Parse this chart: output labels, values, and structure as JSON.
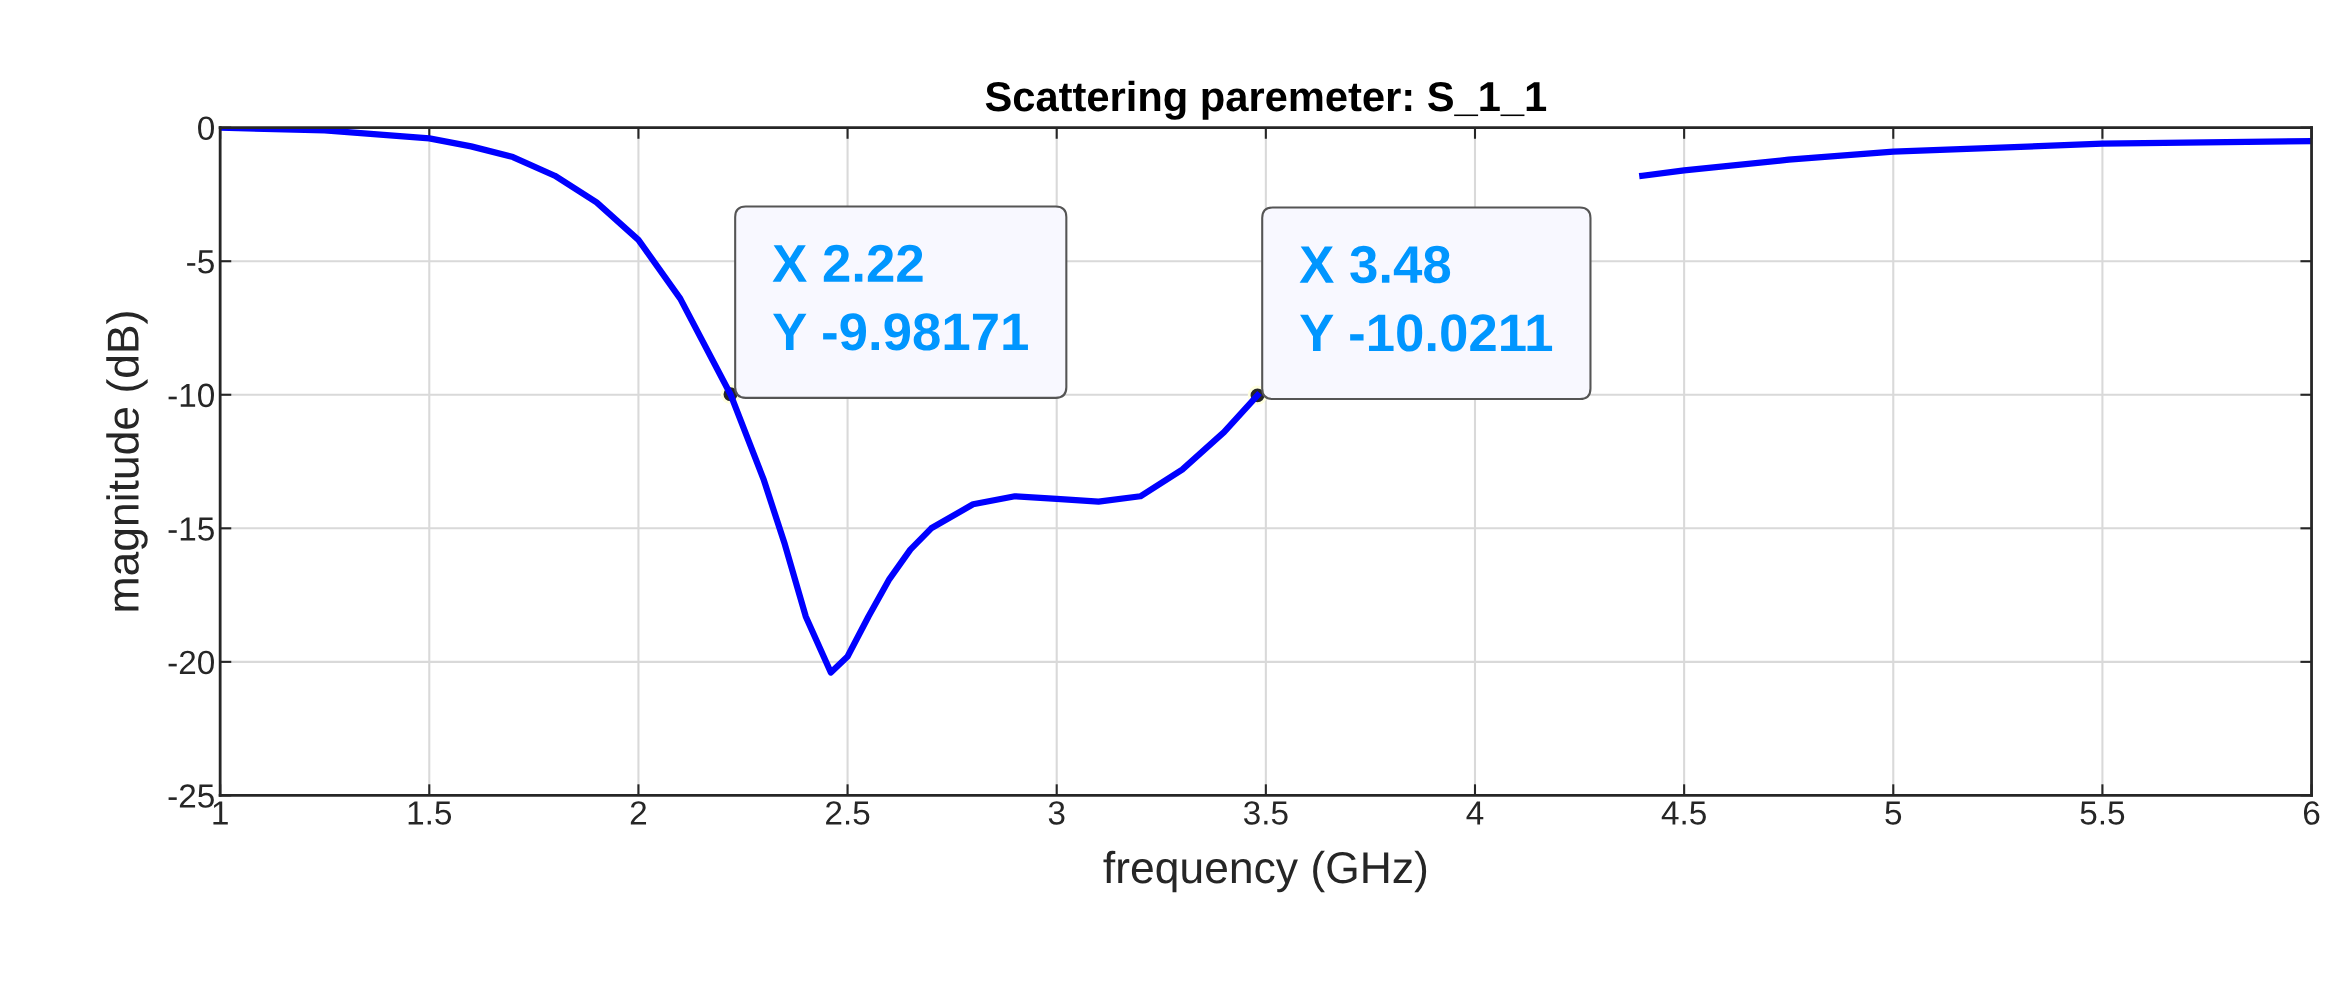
{
  "chart_data": {
    "type": "line",
    "title": "Scattering paremeter: S_1_1",
    "xlabel": "frequency (GHz)",
    "ylabel": "magnitude (dB)",
    "x": [
      1,
      1.25,
      1.5,
      1.6,
      1.7,
      1.8,
      1.9,
      2.0,
      2.1,
      2.22,
      2.3,
      2.35,
      2.4,
      2.46,
      2.5,
      2.55,
      2.6,
      2.65,
      2.7,
      2.8,
      2.9,
      3.0,
      3.1,
      3.2,
      3.3,
      3.4,
      3.48,
      3.6,
      4.4,
      4.5,
      4.75,
      5,
      5.5,
      6
    ],
    "series": [
      {
        "color": "#0000ff",
        "values": [
          0,
          -0.1,
          -0.4,
          -0.7,
          -1.1,
          -1.8,
          -2.8,
          -4.2,
          -6.4,
          -9.98,
          -13.2,
          -15.6,
          -18.3,
          -20.4,
          -19.8,
          -18.3,
          -16.9,
          -15.8,
          -15.0,
          -14.1,
          -13.8,
          -13.9,
          -14.0,
          -13.8,
          -12.8,
          -11.4,
          -10.02,
          null,
          -1.8,
          -1.6,
          -1.2,
          -0.9,
          -0.6,
          -0.5
        ]
      }
    ],
    "xlim": [
      1,
      6
    ],
    "xticks": [
      1,
      1.5,
      2,
      2.5,
      3,
      3.5,
      4,
      4.5,
      5,
      5.5,
      6
    ],
    "ylim": [
      -25,
      0
    ],
    "yticks": [
      -25,
      -20,
      -15,
      -10,
      -5,
      0
    ],
    "grid": true,
    "line_style": "solid",
    "marker": "none",
    "annotations": [
      {
        "text": "X 2.22\nY -9.98171",
        "x": 2.22,
        "y": -9.98171
      },
      {
        "text": "X 3.48\nY -10.0211",
        "x": 3.48,
        "y": -10.0211
      }
    ]
  }
}
